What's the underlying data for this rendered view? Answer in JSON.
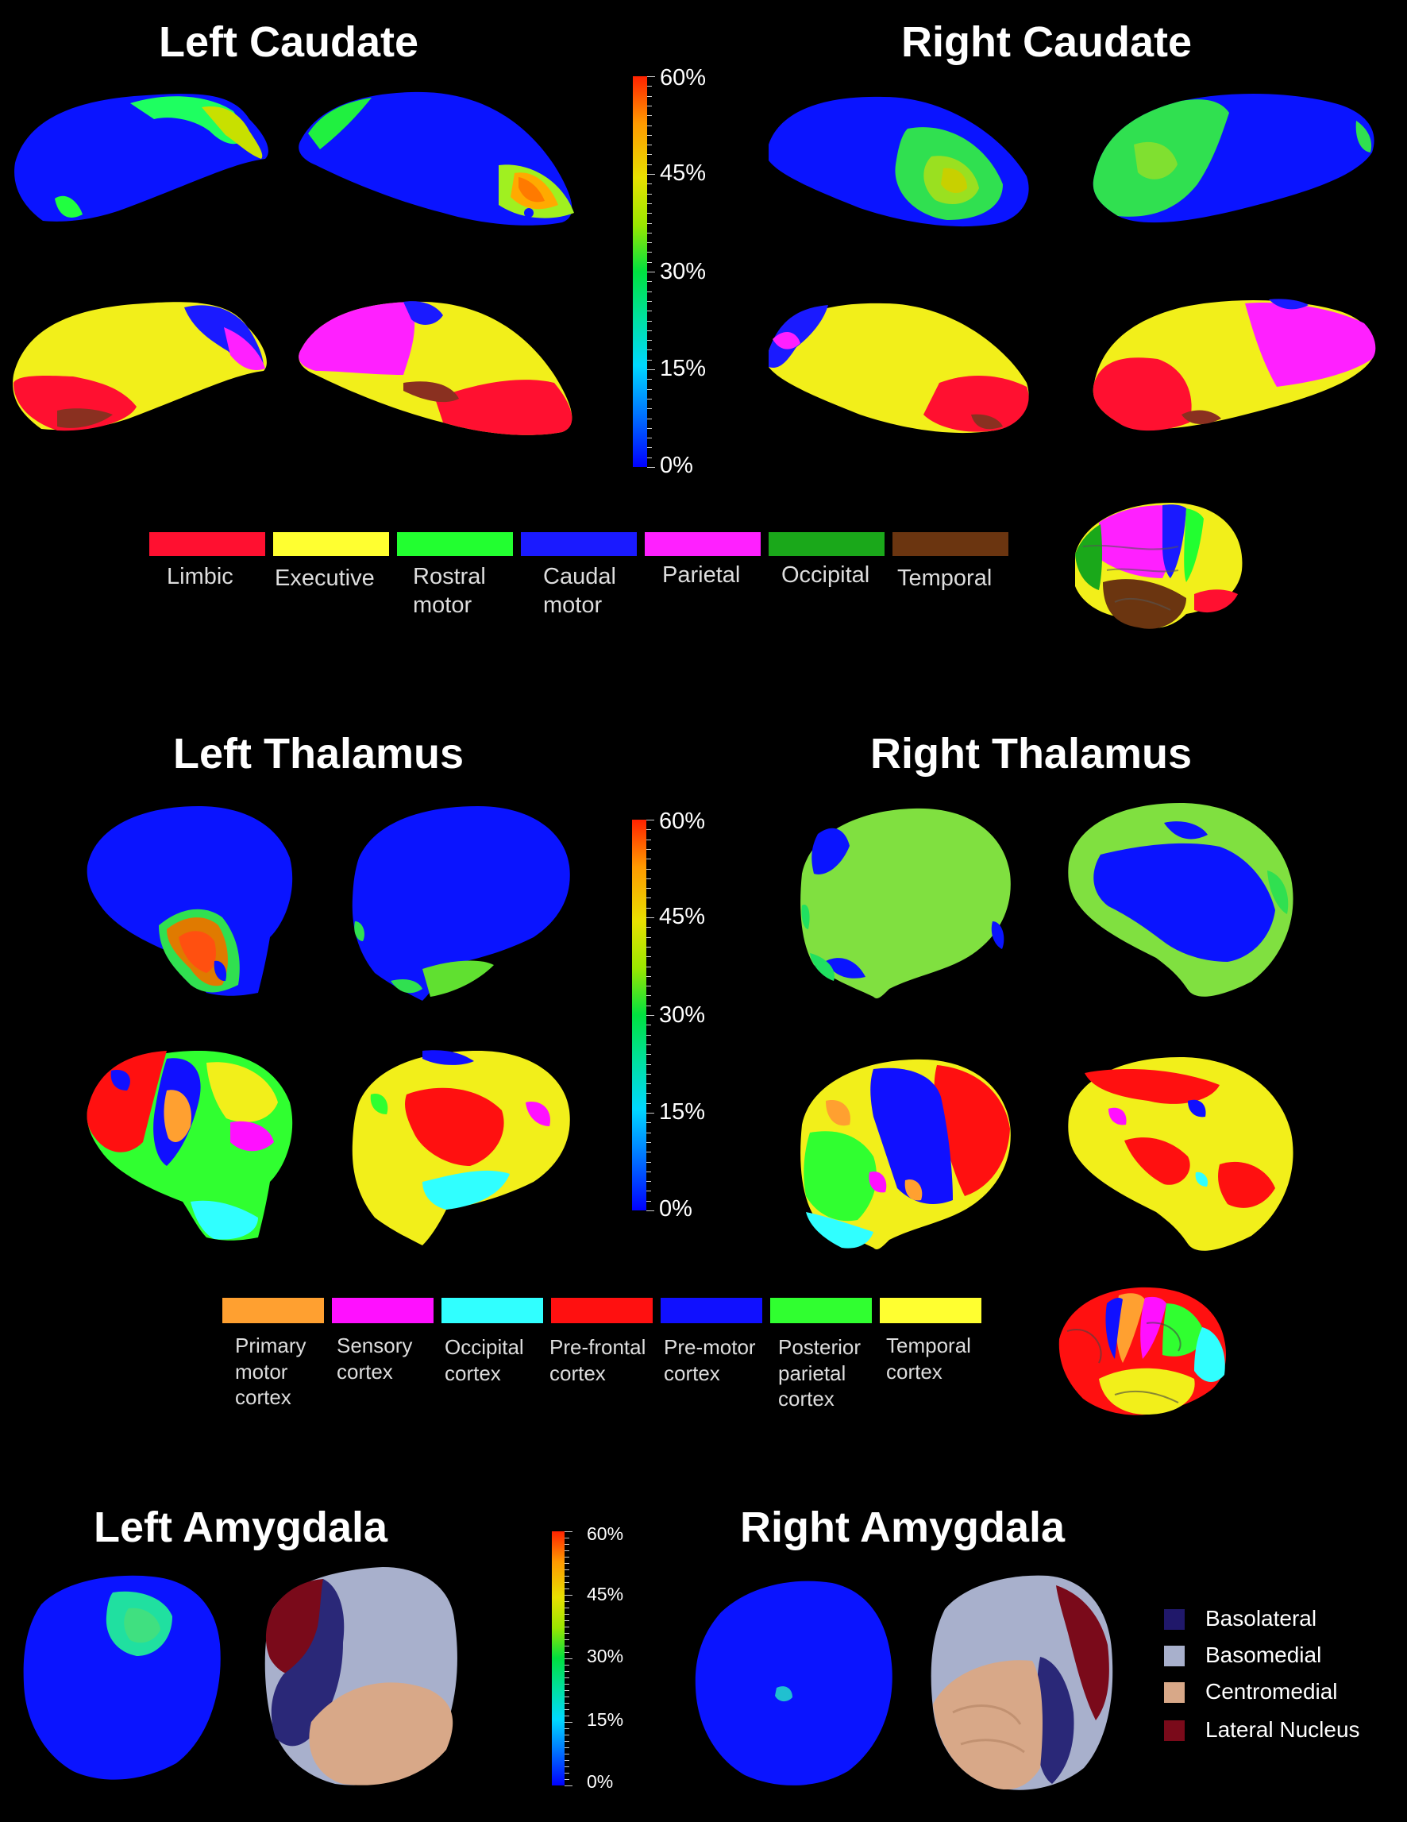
{
  "sections": {
    "caudate": {
      "left_title": "Left Caudate",
      "right_title": "Right Caudate"
    },
    "thalamus": {
      "left_title": "Left Thalamus",
      "right_title": "Right Thalamus"
    },
    "amygdala": {
      "left_title": "Left Amygdala",
      "right_title": "Right Amygdala"
    }
  },
  "colorbar_scale": {
    "labels": [
      "60%",
      "45%",
      "30%",
      "15%",
      "0%"
    ],
    "range": [
      0,
      60
    ],
    "colors": [
      "#ff2200",
      "#ff9900",
      "#e8e000",
      "#00e040",
      "#00d8ff",
      "#0000ff"
    ]
  },
  "caudate_legend": [
    {
      "label": "Limbic",
      "color": "#ff1030"
    },
    {
      "label": "Executive",
      "color": "#ffff30"
    },
    {
      "label": "Rostral\nmotor",
      "color": "#22ff30"
    },
    {
      "label": "Caudal\nmotor",
      "color": "#1a1aff"
    },
    {
      "label": "Parietal",
      "color": "#ff20ff"
    },
    {
      "label": "Occipital",
      "color": "#1aa81a"
    },
    {
      "label": "Temporal",
      "color": "#6b3510"
    }
  ],
  "thalamus_legend": [
    {
      "label": "Primary\nmotor\ncortex",
      "color": "#ffa030"
    },
    {
      "label": "Sensory\ncortex",
      "color": "#ff10ff"
    },
    {
      "label": "Occipital\ncortex",
      "color": "#30ffff"
    },
    {
      "label": "Pre-frontal\ncortex",
      "color": "#ff1010"
    },
    {
      "label": "Pre-motor\ncortex",
      "color": "#1010ff"
    },
    {
      "label": "Posterior\nparietal\ncortex",
      "color": "#30ff30"
    },
    {
      "label": "Temporal\ncortex",
      "color": "#ffff30"
    }
  ],
  "amygdala_legend": [
    {
      "label": "Basolateral",
      "color": "#20186a"
    },
    {
      "label": "Basomedial",
      "color": "#a8b0cc"
    },
    {
      "label": "Centromedial",
      "color": "#d8a888"
    },
    {
      "label": "Lateral Nucleus",
      "color": "#7a0a1a"
    }
  ]
}
